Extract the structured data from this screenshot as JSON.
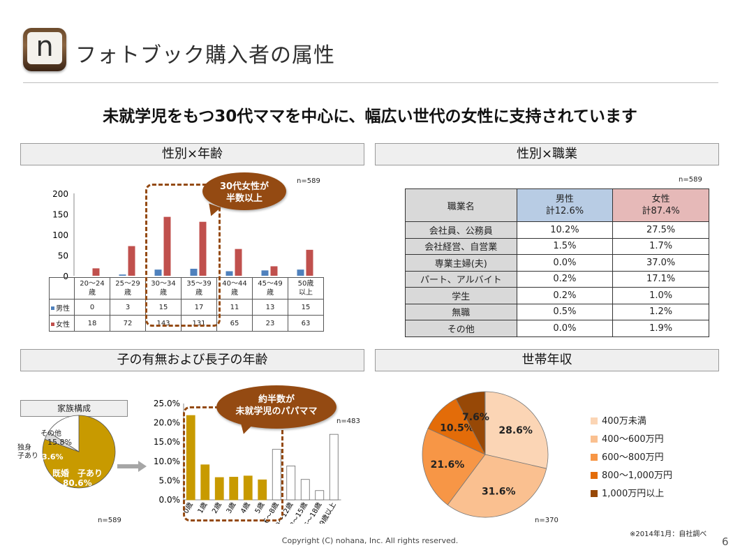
{
  "header": {
    "logo_letter": "n",
    "title": "フォトブック購入者の属性",
    "headline": "未就学児をもつ30代ママを中心に、幅広い世代の女性に支持されています"
  },
  "sections": {
    "gender_age": "性別×年齢",
    "gender_job": "性別×職業",
    "children": "子の有無および長子の年齢",
    "income": "世帯年収"
  },
  "gender_age": {
    "n": "n=589",
    "bubble_line1": "30代女性が",
    "bubble_line2": "半数以上",
    "row_labels": [
      "男性",
      "女性"
    ],
    "category_lines": [
      [
        "20～24",
        "歳"
      ],
      [
        "25～29",
        "歳"
      ],
      [
        "30～34",
        "歳"
      ],
      [
        "35～39",
        "歳"
      ],
      [
        "40～44",
        "歳"
      ],
      [
        "45～49",
        "歳"
      ],
      [
        "50歳",
        "以上"
      ]
    ],
    "colors": {
      "male": "#4f81bd",
      "female": "#c0504d"
    }
  },
  "gender_job": {
    "n": "n=589",
    "col_header_name": "職業名",
    "col_header_male": [
      "男性",
      "計12.6%"
    ],
    "col_header_female": [
      "女性",
      "計87.4%"
    ],
    "rows": [
      {
        "name": "会社員、公務員",
        "male": "10.2%",
        "female": "27.5%"
      },
      {
        "name": "会社経営、自営業",
        "male": "1.5%",
        "female": "1.7%"
      },
      {
        "name": "専業主婦(夫)",
        "male": "0.0%",
        "female": "37.0%"
      },
      {
        "name": "パート、アルバイト",
        "male": "0.2%",
        "female": "17.1%"
      },
      {
        "name": "学生",
        "male": "0.2%",
        "female": "1.0%"
      },
      {
        "name": "無職",
        "male": "0.5%",
        "female": "1.2%"
      },
      {
        "name": "その他",
        "male": "0.0%",
        "female": "1.9%"
      }
    ]
  },
  "family": {
    "box_title": "家族構成",
    "n": "n=589",
    "labels": {
      "other": "その他",
      "other_pct": "15.8%",
      "single_line1": "独身",
      "single_line2": "子あり",
      "single_pct": "3.6%",
      "married": "既婚　子あり",
      "married_pct": "80.6%"
    }
  },
  "child_age": {
    "n": "n=483",
    "bubble_line1": "約半数が",
    "bubble_line2": "未就学児のパパママ",
    "highlight_color": "#c89a00"
  },
  "income": {
    "n": "n=370",
    "colors": [
      "#fbd5b5",
      "#fac090",
      "#f79646",
      "#e36c09",
      "#974806"
    ]
  },
  "chart_data": [
    {
      "type": "bar",
      "title": "性別×年齢",
      "categories": [
        "20～24歳",
        "25～29歳",
        "30～34歳",
        "35～39歳",
        "40～44歳",
        "45～49歳",
        "50歳以上"
      ],
      "series": [
        {
          "name": "男性",
          "values": [
            0,
            3,
            15,
            17,
            11,
            13,
            15
          ]
        },
        {
          "name": "女性",
          "values": [
            18,
            72,
            143,
            131,
            65,
            23,
            63
          ]
        }
      ],
      "ylim": [
        0,
        200
      ],
      "yticks": [
        0,
        50,
        100,
        150,
        200
      ]
    },
    {
      "type": "pie",
      "title": "家族構成",
      "labels": [
        "既婚　子あり",
        "独身 子あり",
        "その他"
      ],
      "values": [
        80.6,
        3.6,
        15.8
      ],
      "display": [
        "80.6%",
        "3.6%",
        "15.8%"
      ]
    },
    {
      "type": "bar",
      "title": "子の有無および長子の年齢",
      "categories": [
        "0歳",
        "1歳",
        "2歳",
        "3歳",
        "4歳",
        "5歳",
        "6～8歳",
        "9～12歳",
        "13～15歳",
        "16～18歳",
        "19歳以上"
      ],
      "values": [
        21.9,
        9.1,
        5.8,
        5.9,
        6.2,
        5.2,
        13.1,
        8.8,
        5.3,
        2.4,
        17.0
      ],
      "highlighted_count": 6,
      "ylim": [
        0,
        25
      ],
      "yticks": [
        "0.0%",
        "5.0%",
        "10.0%",
        "15.0%",
        "20.0%",
        "25.0%"
      ]
    },
    {
      "type": "pie",
      "title": "世帯年収",
      "labels": [
        "400万未満",
        "400～600万円",
        "600～800万円",
        "800～1,000万円",
        "1,000万円以上"
      ],
      "values": [
        28.6,
        31.6,
        21.6,
        10.5,
        7.6
      ],
      "display": [
        "28.6%",
        "31.6%",
        "21.6%",
        "10.5%",
        "7.6%"
      ]
    }
  ],
  "footer": {
    "copyright": "Copyright (C) nohana, Inc. All rights reserved.",
    "source": "※2014年1月：自社調べ",
    "page": "6"
  }
}
